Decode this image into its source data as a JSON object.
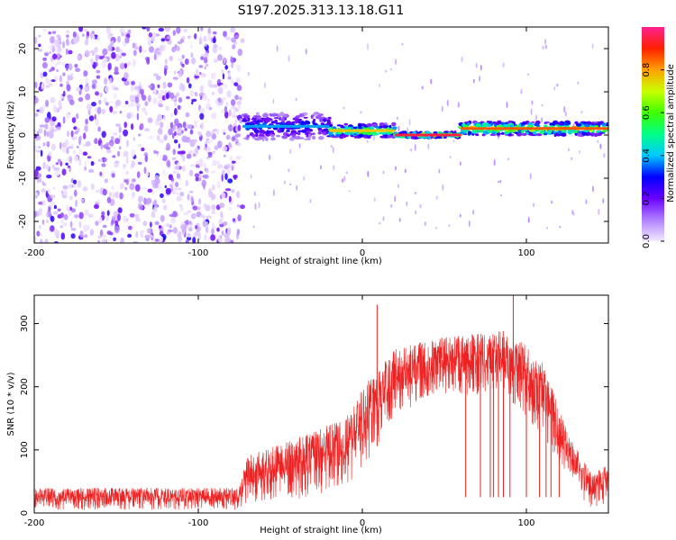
{
  "figure": {
    "title": "S197.2025.313.13.18.G11"
  },
  "chart_data": [
    {
      "type": "heatmap",
      "name": "spectrogram",
      "xlabel": "Height of straight line (km)",
      "ylabel": "Frequency (Hz)",
      "xlim": [
        -200,
        150
      ],
      "ylim": [
        -25,
        25
      ],
      "xticks": [
        -200,
        -100,
        0,
        100
      ],
      "yticks": [
        -20,
        -10,
        0,
        10,
        20
      ],
      "colorbar": {
        "label": "Normalized spectral amplitude",
        "range": [
          0,
          1
        ],
        "ticks": [
          "0.0",
          "0.2",
          "0.4",
          "0.6",
          "0.8"
        ],
        "colors": [
          "#f0e6ff",
          "#8000ff",
          "#0000ff",
          "#00ffff",
          "#00ff00",
          "#ffff00",
          "#ff8000",
          "#ff0000",
          "#ff00a0"
        ]
      },
      "regions": [
        {
          "x": [
            -200,
            -73
          ],
          "description_free": true,
          "freq_range": [
            -25,
            25
          ],
          "amplitude_range": [
            0.0,
            0.2
          ]
        },
        {
          "x": [
            -73,
            -20
          ],
          "freq_center": 2,
          "freq_halfwidth": 3,
          "amplitude_peak": 0.4
        },
        {
          "x": [
            -20,
            20
          ],
          "freq_center": 1,
          "freq_halfwidth": 1.5,
          "amplitude_peak": 0.8
        },
        {
          "x": [
            20,
            60
          ],
          "freq_center": 0,
          "freq_halfwidth": 0.6,
          "amplitude_peak": 1.0
        },
        {
          "x": [
            60,
            150
          ],
          "freq_center": 1.5,
          "freq_halfwidth": 1.5,
          "amplitude_peak": 0.9
        }
      ]
    },
    {
      "type": "line",
      "name": "snr",
      "xlabel": "Height of straight line (km)",
      "ylabel": "SNR (10 * v/v)",
      "xlim": [
        -200,
        150
      ],
      "ylim": [
        0,
        345
      ],
      "xticks": [
        -200,
        -100,
        0,
        100
      ],
      "yticks": [
        0,
        100,
        200,
        300
      ],
      "line_color": "#ee2222",
      "envelope": [
        {
          "x": -200,
          "lo": 5,
          "hi": 40
        },
        {
          "x": -150,
          "lo": 5,
          "hi": 40
        },
        {
          "x": -75,
          "lo": 5,
          "hi": 40
        },
        {
          "x": -70,
          "lo": 15,
          "hi": 90
        },
        {
          "x": -40,
          "lo": 20,
          "hi": 120
        },
        {
          "x": -10,
          "lo": 40,
          "hi": 150
        },
        {
          "x": 0,
          "lo": 70,
          "hi": 200
        },
        {
          "x": 20,
          "lo": 150,
          "hi": 260
        },
        {
          "x": 50,
          "lo": 190,
          "hi": 280
        },
        {
          "x": 90,
          "lo": 180,
          "hi": 290
        },
        {
          "x": 110,
          "lo": 120,
          "hi": 240
        },
        {
          "x": 125,
          "lo": 50,
          "hi": 130
        },
        {
          "x": 140,
          "lo": 5,
          "hi": 60
        },
        {
          "x": 150,
          "lo": 15,
          "hi": 80
        }
      ],
      "peaks": [
        {
          "x": 9,
          "y": 330
        },
        {
          "x": 92,
          "y": 345
        }
      ],
      "dropouts_x": [
        63,
        72,
        78,
        80,
        83,
        86,
        90,
        100,
        108,
        112,
        115,
        120
      ]
    }
  ]
}
